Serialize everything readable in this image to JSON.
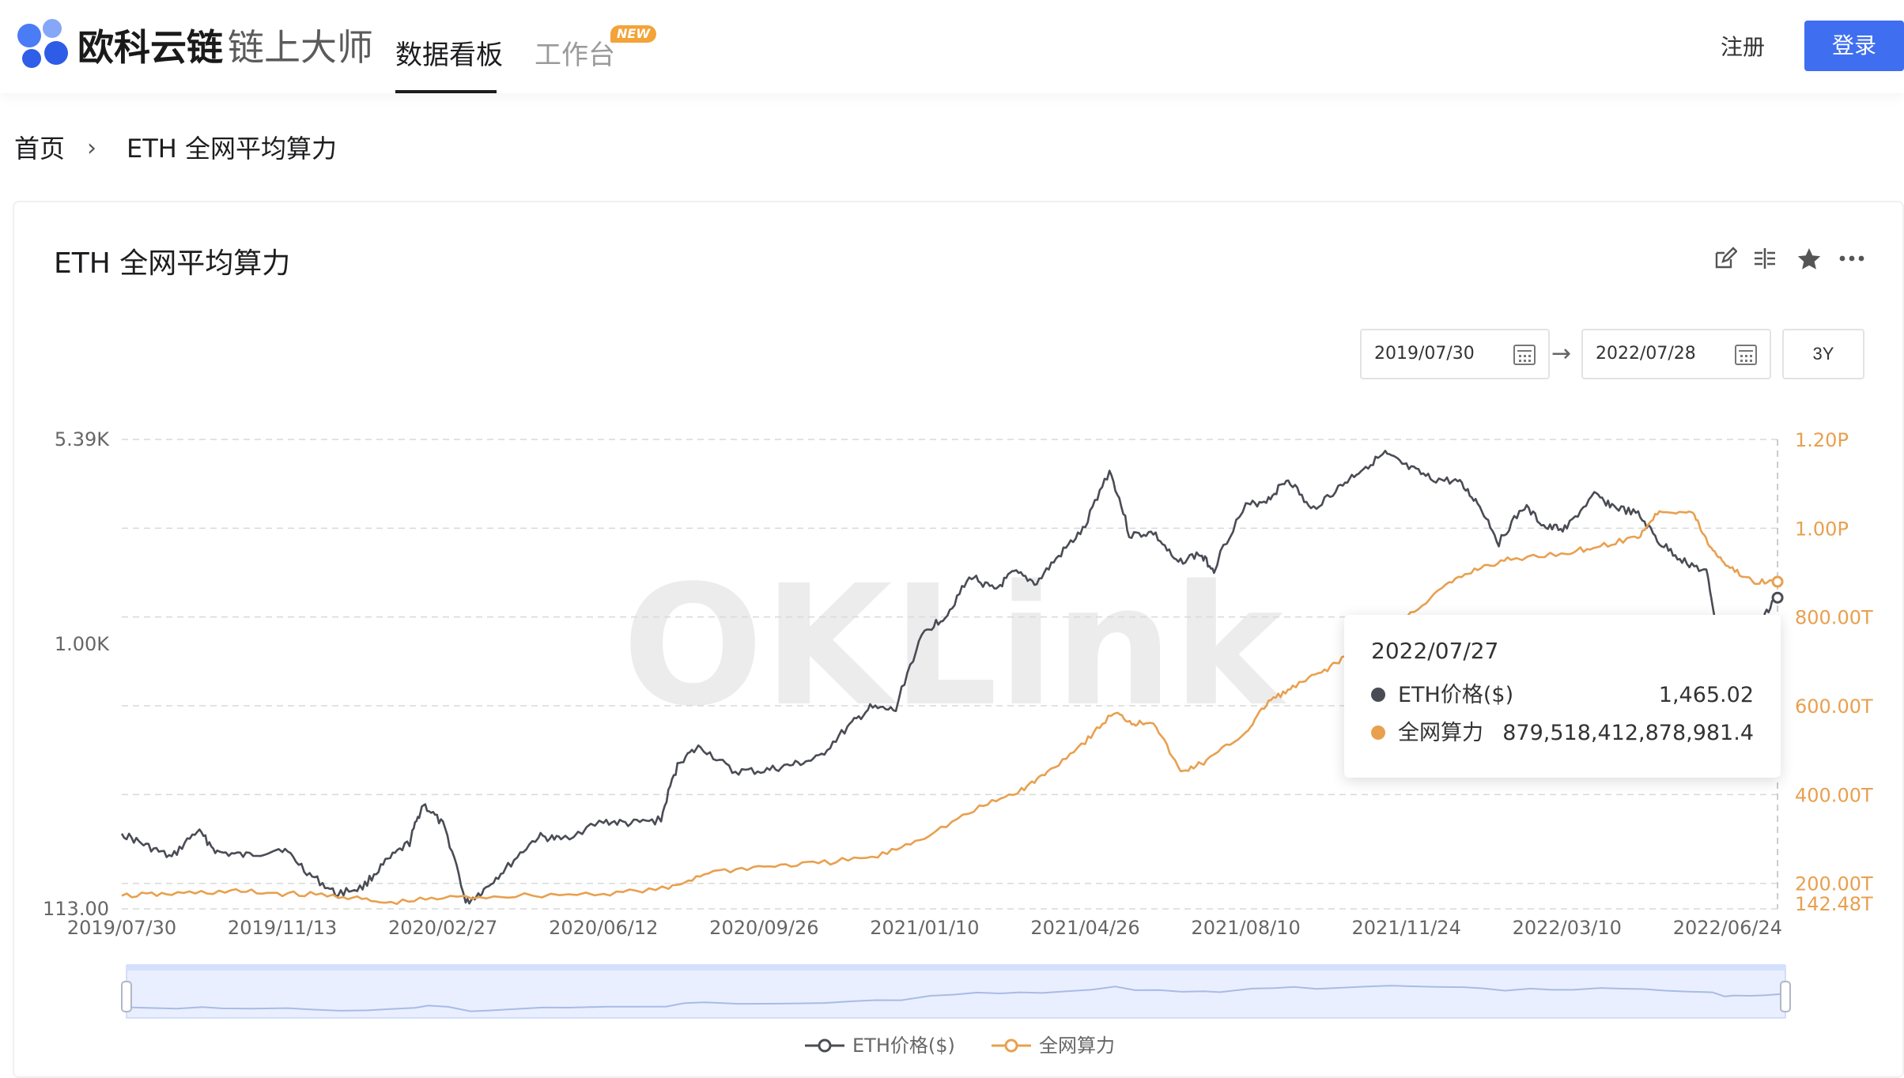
{
  "header": {
    "brand_bold": "欧科云链",
    "brand_light": "链上大师",
    "nav_active": "数据看板",
    "nav_work": "工作台",
    "new_badge": "NEW",
    "register": "注册",
    "login": "登录"
  },
  "breadcrumb": {
    "home": "首页",
    "separator": "›",
    "current": "ETH 全网平均算力"
  },
  "card": {
    "title": "ETH 全网平均算力",
    "tool_icons": [
      "edit-icon",
      "compare-icon",
      "star-icon",
      "more-icon"
    ],
    "start_date": "2019/07/30",
    "end_date": "2022/07/28",
    "range_button": "3Y"
  },
  "tooltip": {
    "date": "2022/07/27",
    "rows": [
      {
        "label": "ETH价格($)",
        "value": "1,465.02",
        "color": "#4a4c55"
      },
      {
        "label": "全网算力",
        "value": "879,518,412,878,981.4",
        "color": "#e8a04f"
      }
    ]
  },
  "watermark": "OKLink",
  "chart_data": {
    "type": "line",
    "x_ticks": [
      "2019/07/30",
      "2019/11/13",
      "2020/02/27",
      "2020/06/12",
      "2020/09/26",
      "2021/01/10",
      "2021/04/26",
      "2021/08/10",
      "2021/11/24",
      "2022/03/10",
      "2022/06/24"
    ],
    "left_axis": {
      "scale": "log",
      "tick_labels": [
        "5.39K",
        "1.00K",
        "113.00"
      ],
      "tick_values": [
        5390,
        1000,
        113
      ]
    },
    "right_axis": {
      "scale": "linear",
      "tick_labels": [
        "1.20P",
        "1.00P",
        "800.00T",
        "600.00T",
        "400.00T",
        "200.00T",
        "142.48T"
      ],
      "tick_values": [
        1200,
        1000,
        800,
        600,
        400,
        200,
        142.48
      ],
      "unit": "T"
    },
    "series": [
      {
        "name": "ETH价格($)",
        "axis": "left",
        "color": "#4a4c55",
        "points": [
          [
            "2019/07/30",
            210
          ],
          [
            "2019/08/15",
            190
          ],
          [
            "2019/09/01",
            172
          ],
          [
            "2019/09/18",
            215
          ],
          [
            "2019/10/01",
            180
          ],
          [
            "2019/10/20",
            175
          ],
          [
            "2019/11/13",
            186
          ],
          [
            "2019/12/01",
            150
          ],
          [
            "2019/12/18",
            128
          ],
          [
            "2020/01/05",
            135
          ],
          [
            "2020/01/20",
            165
          ],
          [
            "2020/02/05",
            195
          ],
          [
            "2020/02/14",
            268
          ],
          [
            "2020/02/27",
            225
          ],
          [
            "2020/03/13",
            118
          ],
          [
            "2020/03/25",
            132
          ],
          [
            "2020/04/10",
            160
          ],
          [
            "2020/04/30",
            205
          ],
          [
            "2020/05/15",
            200
          ],
          [
            "2020/06/12",
            232
          ],
          [
            "2020/06/30",
            228
          ],
          [
            "2020/07/20",
            235
          ],
          [
            "2020/08/01",
            380
          ],
          [
            "2020/08/15",
            430
          ],
          [
            "2020/09/05",
            350
          ],
          [
            "2020/09/26",
            352
          ],
          [
            "2020/10/15",
            370
          ],
          [
            "2020/11/01",
            390
          ],
          [
            "2020/11/20",
            500
          ],
          [
            "2020/12/05",
            590
          ],
          [
            "2020/12/22",
            580
          ],
          [
            "2021/01/10",
            1100
          ],
          [
            "2021/01/25",
            1280
          ],
          [
            "2021/02/10",
            1750
          ],
          [
            "2021/02/25",
            1550
          ],
          [
            "2021/03/10",
            1800
          ],
          [
            "2021/03/25",
            1650
          ],
          [
            "2021/04/10",
            2100
          ],
          [
            "2021/04/26",
            2600
          ],
          [
            "2021/05/12",
            4150
          ],
          [
            "2021/05/25",
            2450
          ],
          [
            "2021/06/10",
            2500
          ],
          [
            "2021/06/25",
            1950
          ],
          [
            "2021/07/10",
            2100
          ],
          [
            "2021/07/20",
            1850
          ],
          [
            "2021/08/10",
            3100
          ],
          [
            "2021/08/25",
            3300
          ],
          [
            "2021/09/07",
            3900
          ],
          [
            "2021/09/22",
            3000
          ],
          [
            "2021/10/10",
            3600
          ],
          [
            "2021/10/25",
            4200
          ],
          [
            "2021/11/10",
            4780
          ],
          [
            "2021/11/24",
            4300
          ],
          [
            "2021/12/10",
            3900
          ],
          [
            "2021/12/28",
            3800
          ],
          [
            "2022/01/10",
            3200
          ],
          [
            "2022/01/24",
            2300
          ],
          [
            "2022/02/10",
            3100
          ],
          [
            "2022/02/24",
            2600
          ],
          [
            "2022/03/10",
            2600
          ],
          [
            "2022/03/28",
            3400
          ],
          [
            "2022/04/10",
            3100
          ],
          [
            "2022/04/26",
            2900
          ],
          [
            "2022/05/10",
            2300
          ],
          [
            "2022/05/25",
            2000
          ],
          [
            "2022/06/10",
            1800
          ],
          [
            "2022/06/18",
            1000
          ],
          [
            "2022/06/24",
            1150
          ],
          [
            "2022/07/05",
            1100
          ],
          [
            "2022/07/15",
            1200
          ],
          [
            "2022/07/27",
            1465.02
          ]
        ]
      },
      {
        "name": "全网算力",
        "axis": "right",
        "color": "#e8a04f",
        "points": [
          [
            "2019/07/30",
            172
          ],
          [
            "2019/09/01",
            176
          ],
          [
            "2019/10/10",
            182
          ],
          [
            "2019/11/13",
            177
          ],
          [
            "2019/12/20",
            172
          ],
          [
            "2020/01/20",
            155
          ],
          [
            "2020/02/27",
            167
          ],
          [
            "2020/04/15",
            172
          ],
          [
            "2020/06/12",
            177
          ],
          [
            "2020/07/25",
            188
          ],
          [
            "2020/08/20",
            225
          ],
          [
            "2020/09/26",
            238
          ],
          [
            "2020/11/01",
            245
          ],
          [
            "2020/12/10",
            260
          ],
          [
            "2021/01/10",
            305
          ],
          [
            "2021/02/15",
            370
          ],
          [
            "2021/03/15",
            410
          ],
          [
            "2021/04/01",
            450
          ],
          [
            "2021/04/26",
            520
          ],
          [
            "2021/05/15",
            585
          ],
          [
            "2021/05/28",
            560
          ],
          [
            "2021/06/10",
            565
          ],
          [
            "2021/06/28",
            450
          ],
          [
            "2021/07/15",
            475
          ],
          [
            "2021/08/10",
            540
          ],
          [
            "2021/08/25",
            610
          ],
          [
            "2021/09/10",
            640
          ],
          [
            "2021/10/01",
            680
          ],
          [
            "2021/10/20",
            720
          ],
          [
            "2021/11/24",
            800
          ],
          [
            "2021/12/20",
            870
          ],
          [
            "2022/01/10",
            910
          ],
          [
            "2022/02/01",
            930
          ],
          [
            "2022/03/10",
            945
          ],
          [
            "2022/04/01",
            960
          ],
          [
            "2022/04/26",
            980
          ],
          [
            "2022/05/10",
            1040
          ],
          [
            "2022/06/01",
            1035
          ],
          [
            "2022/06/12",
            960
          ],
          [
            "2022/06/24",
            915
          ],
          [
            "2022/07/10",
            880
          ],
          [
            "2022/07/27",
            879.52
          ]
        ]
      }
    ],
    "grid": true,
    "legend": {
      "position": "bottom-center",
      "items": [
        "ETH价格($)",
        "全网算力"
      ]
    },
    "crosshair_date": "2022/07/27",
    "zoom_slider": true
  }
}
